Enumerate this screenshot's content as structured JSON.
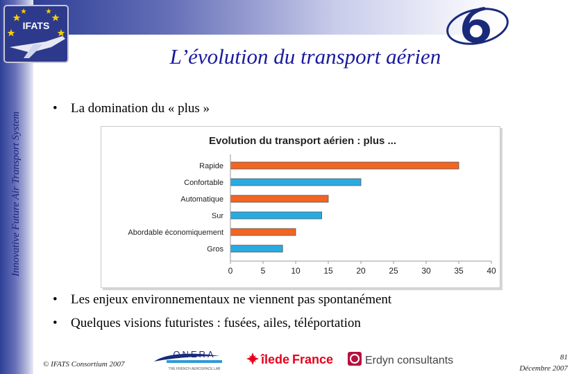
{
  "sidebar": {
    "vertical_text": "Innovative Future Air Transport System"
  },
  "logos": {
    "ifats": "IFATS",
    "onera": "ONERA",
    "onera_tagline": "THE FRENCH AEROSPACE LAB",
    "iledefrance_a": "îlede",
    "iledefrance_b": "France",
    "erdyn": "Erdyn consultants"
  },
  "slide": {
    "title": "L’évolution du transport aérien",
    "bullet1": "La domination du « plus »",
    "bullet2": "Les enjeux environnementaux ne viennent pas spontanément",
    "bullet3": "Quelques visions futuristes : fusées, ailes, téléportation",
    "bullet_symbol": "•"
  },
  "footer": {
    "copyright": "© IFATS Consortium 2007",
    "page": "81",
    "date": "Décembre 2007"
  },
  "chart_data": {
    "type": "bar",
    "orientation": "horizontal",
    "title": "Evolution du transport aérien : plus ...",
    "categories": [
      "Rapide",
      "Confortable",
      "Automatique",
      "Sur",
      "Abordable économiquement",
      "Gros"
    ],
    "values": [
      35,
      20,
      15,
      14,
      10,
      8
    ],
    "bar_colors": [
      "#f26522",
      "#29abe2",
      "#f26522",
      "#29abe2",
      "#f26522",
      "#29abe2"
    ],
    "xlim": [
      0,
      40
    ],
    "xticks": [
      "0",
      "5",
      "10",
      "15",
      "20",
      "25",
      "30",
      "35",
      "40"
    ],
    "grid": false
  }
}
